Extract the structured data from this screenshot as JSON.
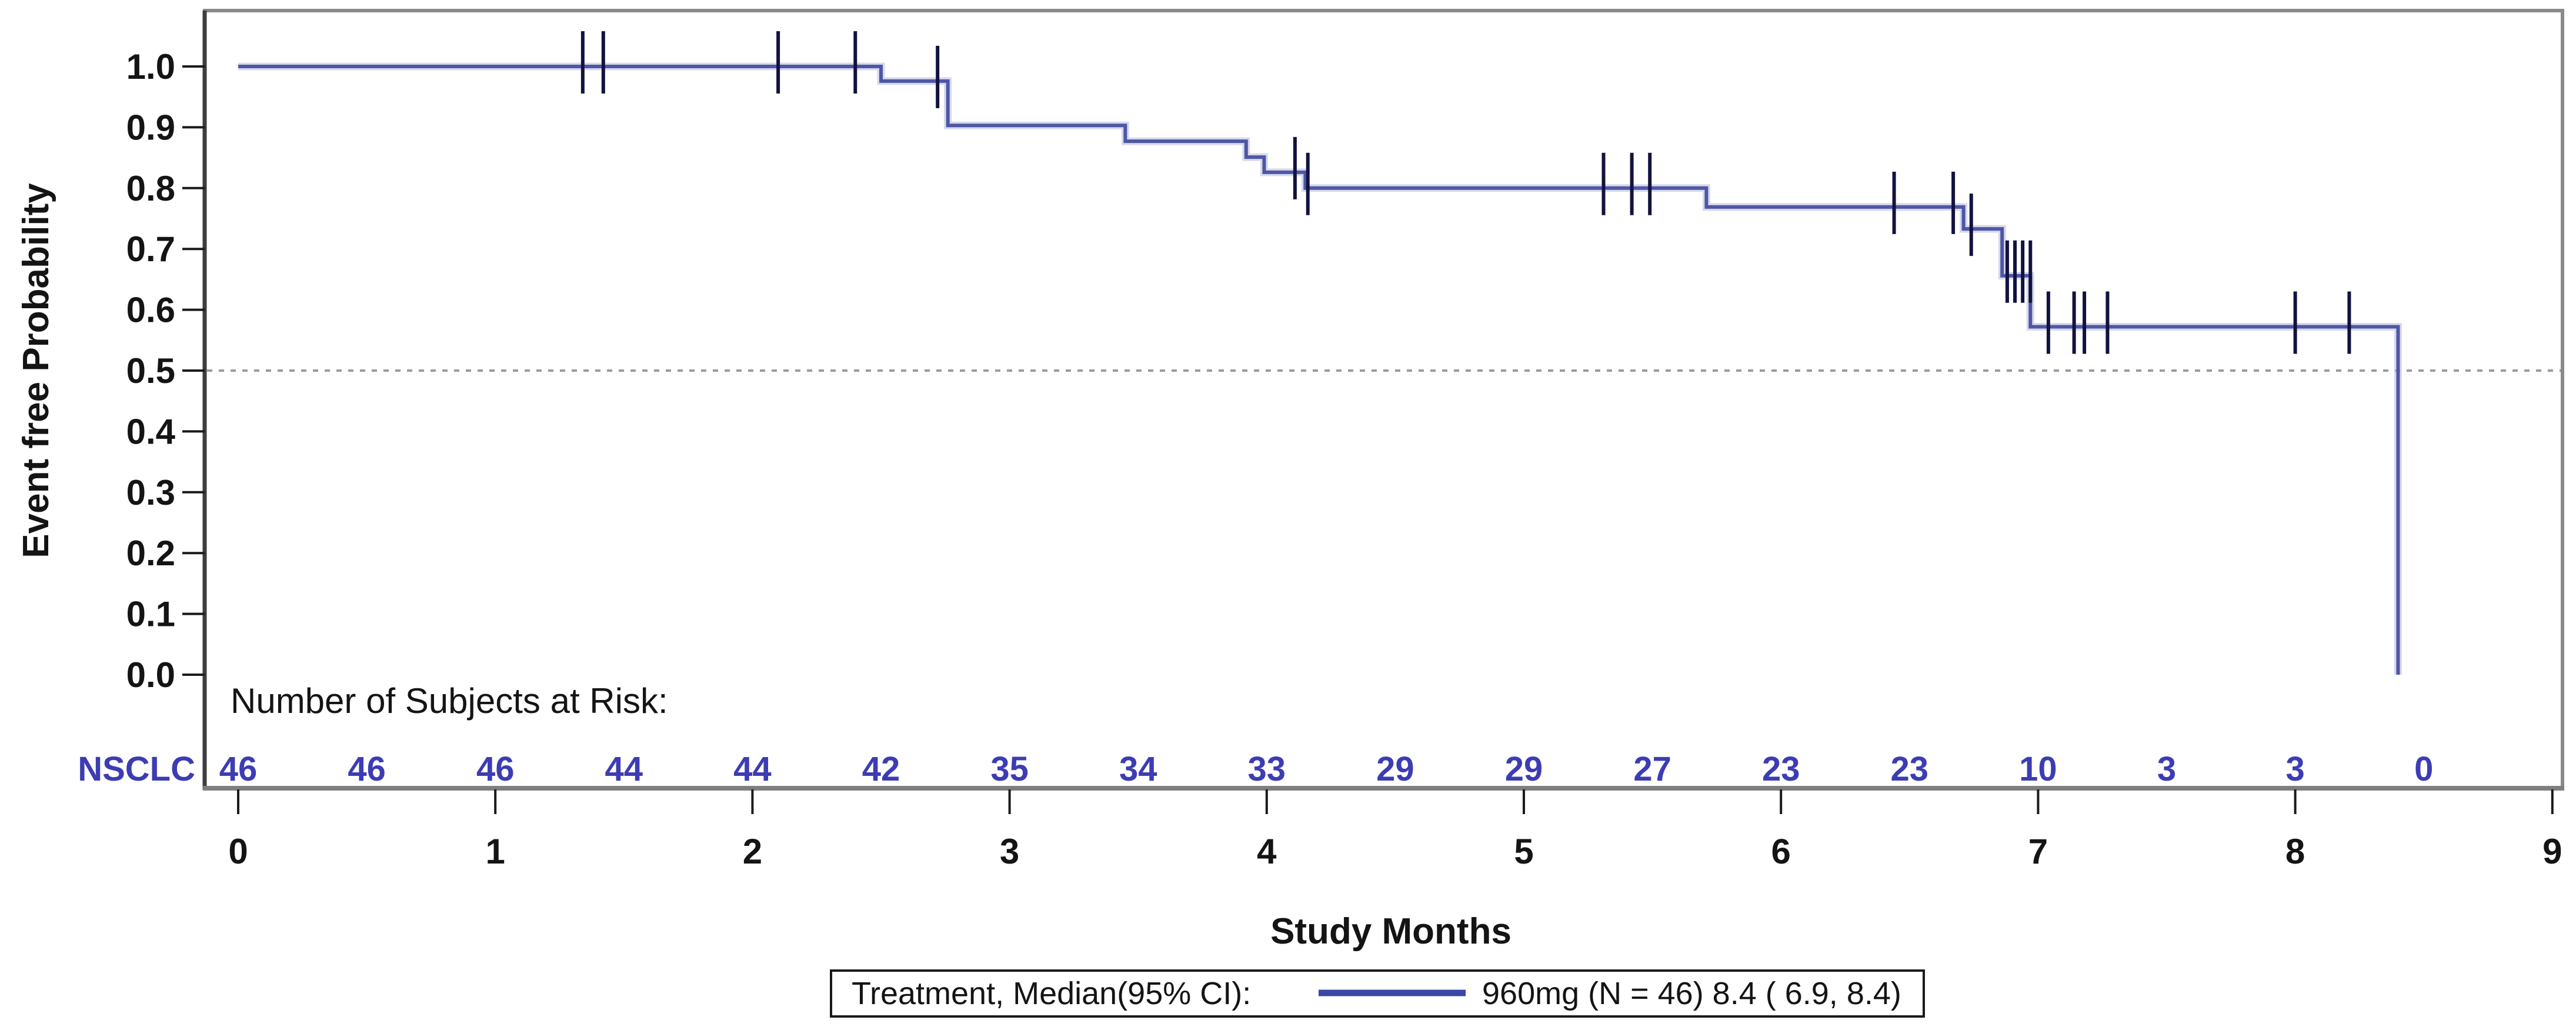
{
  "chart_data": {
    "type": "line",
    "subtype": "kaplan-meier-step",
    "title": "",
    "xlabel": "Study Months",
    "ylabel": "Event free Probability",
    "xlim": [
      0,
      9
    ],
    "ylim": [
      0.0,
      1.0
    ],
    "x_ticks": [
      0,
      1,
      2,
      3,
      4,
      5,
      6,
      7,
      8,
      9
    ],
    "y_ticks": [
      1.0,
      0.9,
      0.8,
      0.7,
      0.6,
      0.5,
      0.4,
      0.3,
      0.2,
      0.1,
      0.0
    ],
    "y_tick_labels": [
      "1.0",
      "0.9",
      "0.8",
      "0.7",
      "0.6",
      "0.5",
      "0.4",
      "0.3",
      "0.2",
      "0.1",
      "0.0"
    ],
    "grid": false,
    "reference_line": {
      "y": 0.5,
      "style": "dashed"
    },
    "series": [
      {
        "name": "960mg",
        "n": 46,
        "median": "8.4",
        "ci_95": "( 6.9, 8.4)",
        "steps": [
          [
            0.0,
            1.0
          ],
          [
            2.5,
            0.976
          ],
          [
            2.76,
            0.903
          ],
          [
            3.45,
            0.877
          ],
          [
            3.92,
            0.851
          ],
          [
            3.99,
            0.826
          ],
          [
            4.15,
            0.8
          ],
          [
            5.71,
            0.769
          ],
          [
            6.71,
            0.733
          ],
          [
            6.86,
            0.656
          ],
          [
            6.97,
            0.572
          ],
          [
            8.4,
            0.0
          ]
        ],
        "censor_marks": [
          [
            1.34,
            1.0
          ],
          [
            1.42,
            1.0
          ],
          [
            2.1,
            1.0
          ],
          [
            2.4,
            1.0
          ],
          [
            2.72,
            0.976
          ],
          [
            4.11,
            0.826
          ],
          [
            4.16,
            0.8
          ],
          [
            5.31,
            0.8
          ],
          [
            5.42,
            0.8
          ],
          [
            5.49,
            0.8
          ],
          [
            6.44,
            0.769
          ],
          [
            6.67,
            0.769
          ],
          [
            6.74,
            0.733
          ],
          [
            6.88,
            0.656
          ],
          [
            6.91,
            0.656
          ],
          [
            6.94,
            0.656
          ],
          [
            6.97,
            0.656
          ],
          [
            7.04,
            0.572
          ],
          [
            7.14,
            0.572
          ],
          [
            7.18,
            0.572
          ],
          [
            7.27,
            0.572
          ],
          [
            8.0,
            0.572
          ],
          [
            8.21,
            0.572
          ]
        ]
      }
    ],
    "risk_table": {
      "title": "Number of Subjects at Risk:",
      "group_label": "NSCLC",
      "times": [
        0,
        0.5,
        1,
        1.5,
        2,
        2.5,
        3,
        3.5,
        4,
        4.5,
        5,
        5.5,
        6,
        6.5,
        7,
        7.5,
        8,
        8.5
      ],
      "counts": [
        46,
        46,
        46,
        44,
        44,
        42,
        35,
        34,
        33,
        29,
        29,
        27,
        23,
        23,
        10,
        3,
        3,
        0
      ]
    },
    "legend": {
      "prefix": "Treatment, Median(95% CI):",
      "entry_label": "960mg (N = 46) 8.4 ( 6.9, 8.4)",
      "position": "bottom-center"
    }
  },
  "colors": {
    "curve": "#4E57A6",
    "curve_halo": "#B5B9DD",
    "censor": "#12123F",
    "risk_text": "#3C3CB4",
    "frame_gray": "#8A8A8A",
    "axis_dark": "#3D3D3D",
    "tick_black": "#1A1A1A",
    "dashed_ref": "#9B9B9B",
    "text": "#141414",
    "legend_line": "#3A47A3",
    "background": "#FFFFFF"
  }
}
